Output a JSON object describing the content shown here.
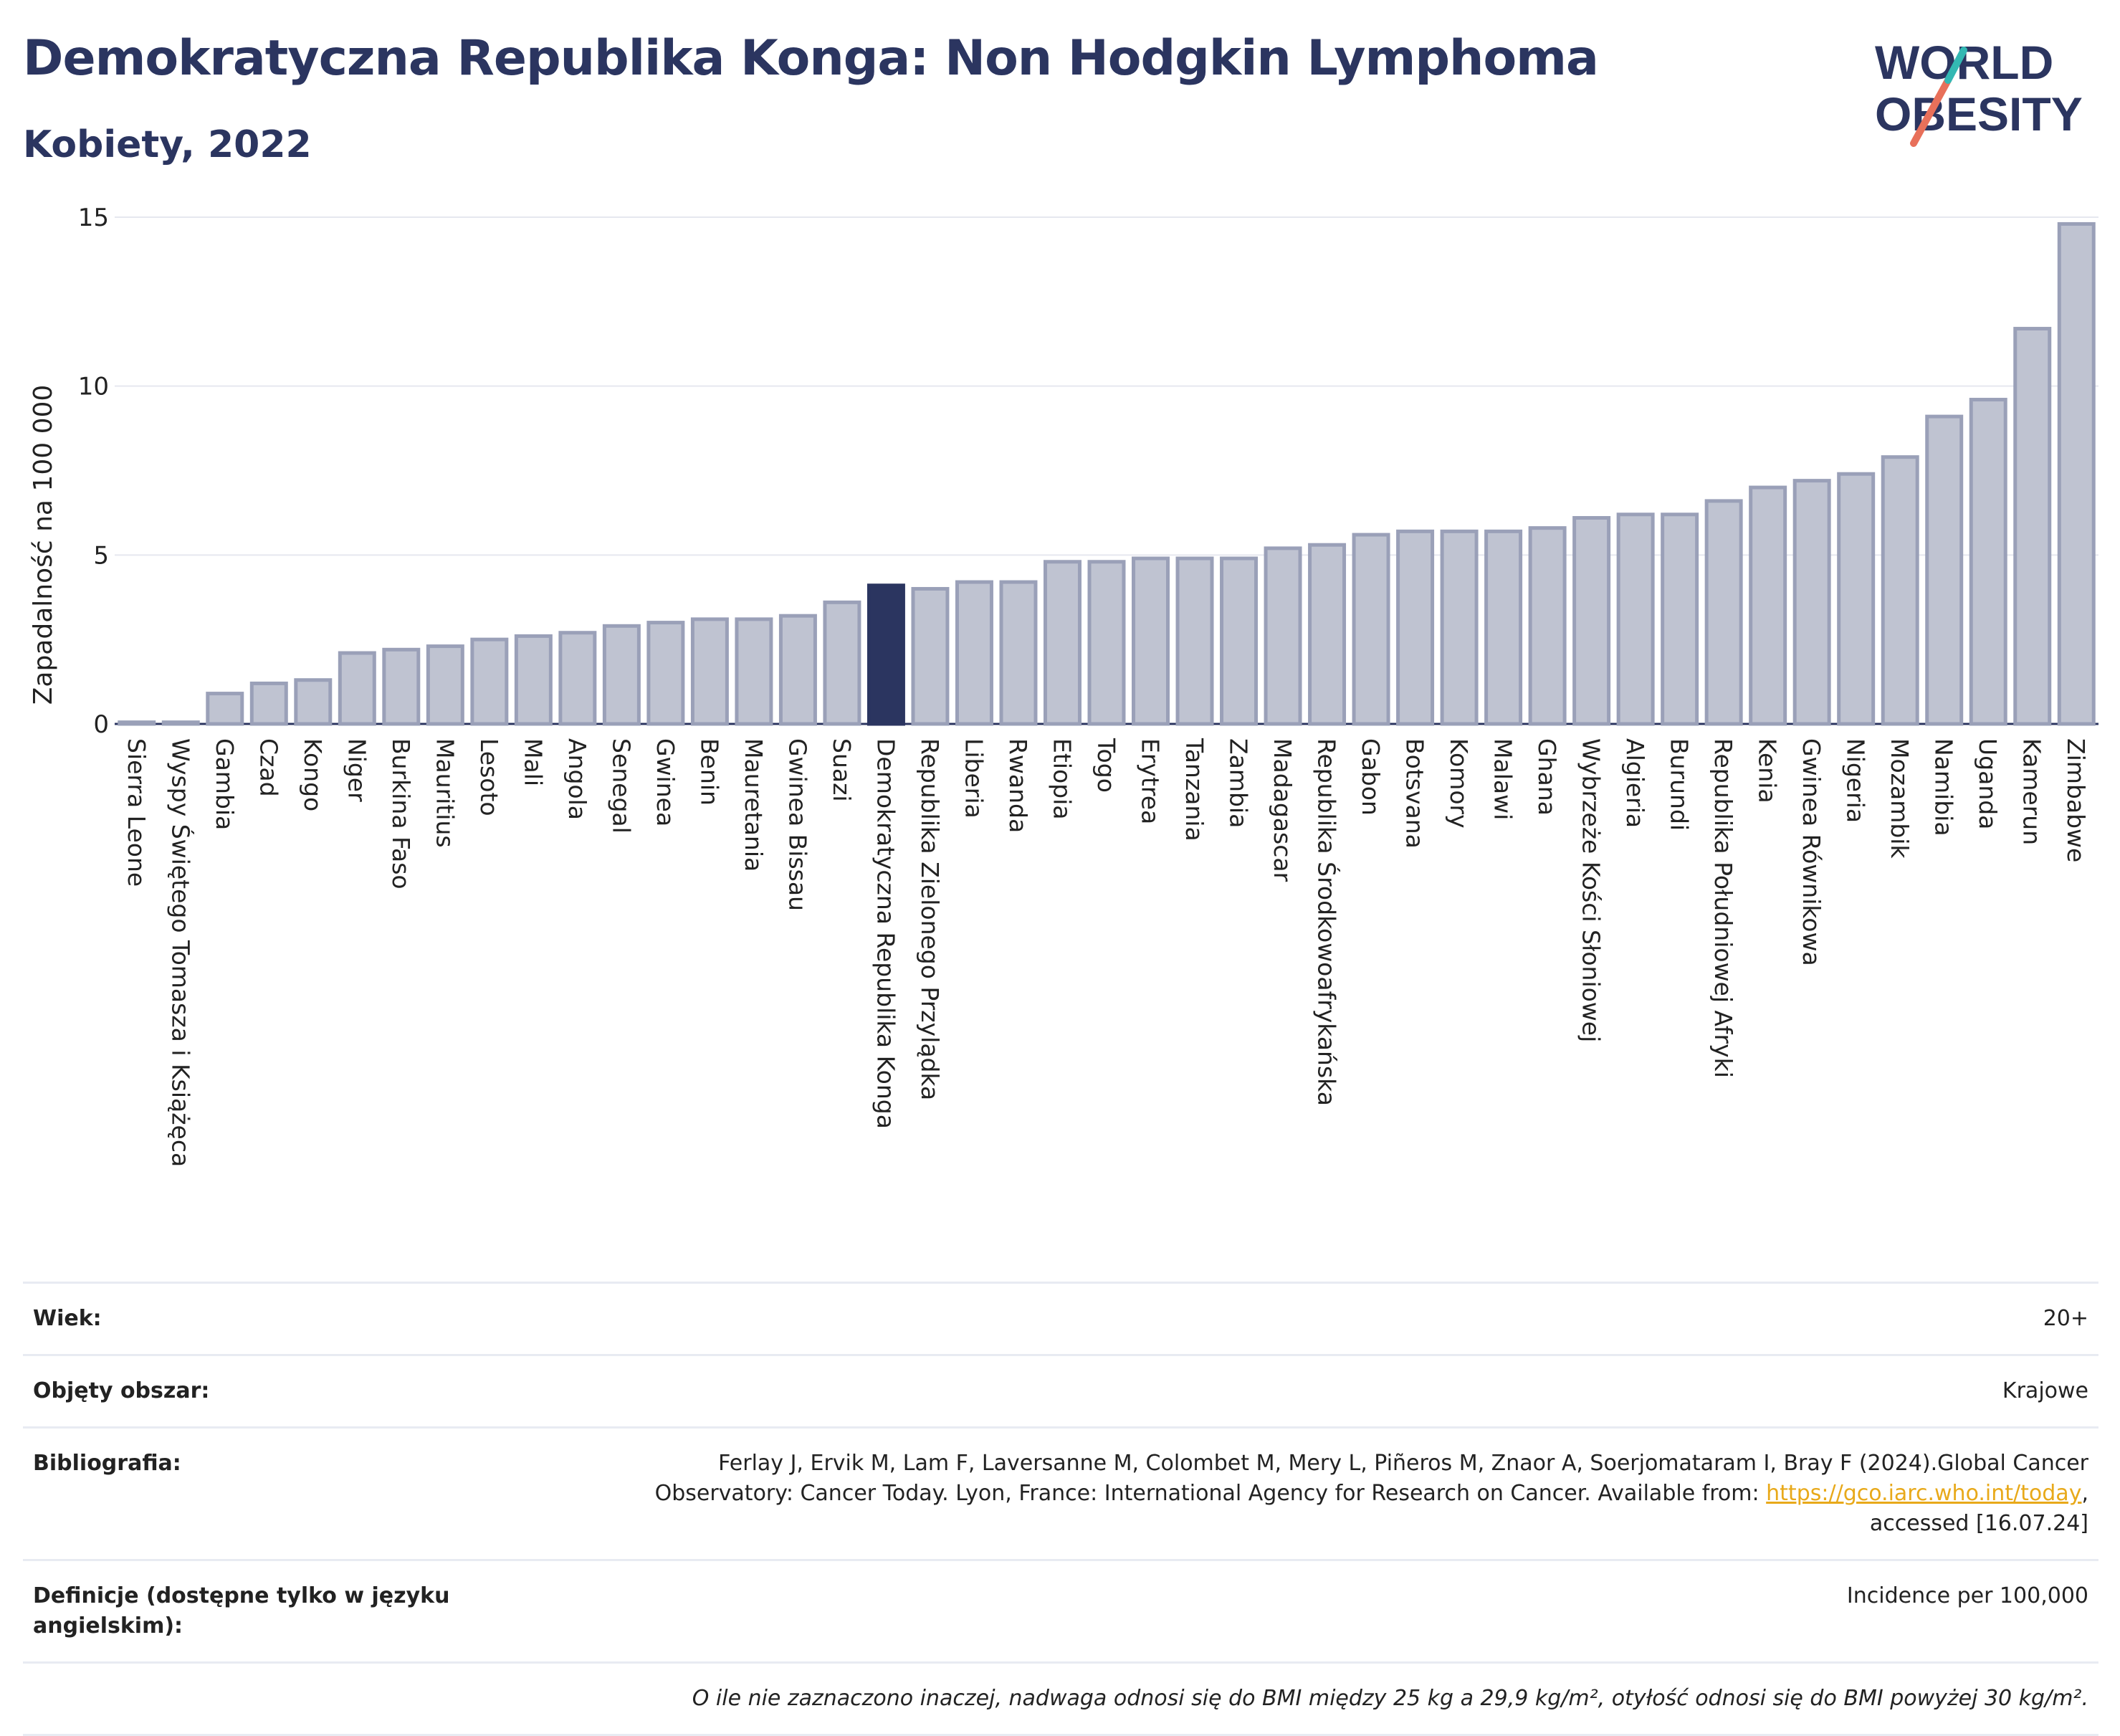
{
  "header": {
    "title": "Demokratyczna Republika Konga: Non Hodgkin Lymphoma",
    "subtitle": "Kobiety, 2022",
    "logo_line1": "WORLD",
    "logo_line2": "OBESITY"
  },
  "chart_data": {
    "type": "bar",
    "ylabel": "Zapadalność na 100 000",
    "ylim": [
      0,
      15
    ],
    "yticks": [
      0,
      5,
      10,
      15
    ],
    "grid": true,
    "highlight": "Demokratyczna Republika Konga",
    "colors": {
      "bar": "#bfc3d1",
      "bar_border": "#9aa0b8",
      "highlight": "#2b3560"
    },
    "categories": [
      "Sierra Leone",
      "Wyspy Świętego Tomasza i Książęca",
      "Gambia",
      "Czad",
      "Kongo",
      "Niger",
      "Burkina Faso",
      "Mauritius",
      "Lesoto",
      "Mali",
      "Angola",
      "Senegal",
      "Gwinea",
      "Benin",
      "Mauretania",
      "Gwinea Bissau",
      "Suazi",
      "Demokratyczna Republika Konga",
      "Republika Zielonego Przylądka",
      "Liberia",
      "Rwanda",
      "Etiopia",
      "Togo",
      "Erytrea",
      "Tanzania",
      "Zambia",
      "Madagascar",
      "Republika Środkowoafrykańska",
      "Gabon",
      "Botsvana",
      "Komory",
      "Malawi",
      "Ghana",
      "Wybrzeże Kości Słoniowej",
      "Algieria",
      "Burundi",
      "Republika Południowej Afryki",
      "Kenia",
      "Gwinea Równikowa",
      "Nigeria",
      "Mozambik",
      "Namibia",
      "Uganda",
      "Kamerun",
      "Zimbabwe"
    ],
    "values": [
      0.05,
      0.05,
      0.9,
      1.2,
      1.3,
      2.1,
      2.2,
      2.3,
      2.5,
      2.6,
      2.7,
      2.9,
      3.0,
      3.1,
      3.1,
      3.2,
      3.6,
      4.1,
      4.0,
      4.2,
      4.2,
      4.8,
      4.8,
      4.9,
      4.9,
      4.9,
      5.2,
      5.3,
      5.6,
      5.7,
      5.7,
      5.7,
      5.8,
      6.1,
      6.2,
      6.2,
      6.6,
      7.0,
      7.2,
      7.4,
      7.9,
      9.1,
      9.6,
      11.7,
      14.8
    ]
  },
  "info": {
    "age_label": "Wiek:",
    "age_value": "20+",
    "coverage_label": "Objęty obszar:",
    "coverage_value": "Krajowe",
    "biblio_label": "Bibliografia:",
    "biblio_text1": "Ferlay J, Ervik M, Lam F, Laversanne M, Colombet M, Mery L, Piñeros M, Znaor A, Soerjomataram I, Bray F (2024).Global Cancer",
    "biblio_text2": "Observatory: Cancer Today. Lyon, France: International Agency for Research on Cancer. Available from: ",
    "biblio_link": "https://gco.iarc.who.int/today",
    "biblio_text3": ",",
    "biblio_text4": "accessed [16.07.24]",
    "def_label": "Definicje (dostępne tylko w języku angielskim):",
    "def_value": "Incidence per 100,000",
    "note": "O ile nie zaznaczono inaczej, nadwaga odnosi się do BMI między 25 kg a 29,9 kg/m², otyłość odnosi się do BMI powyżej 30 kg/m²."
  }
}
